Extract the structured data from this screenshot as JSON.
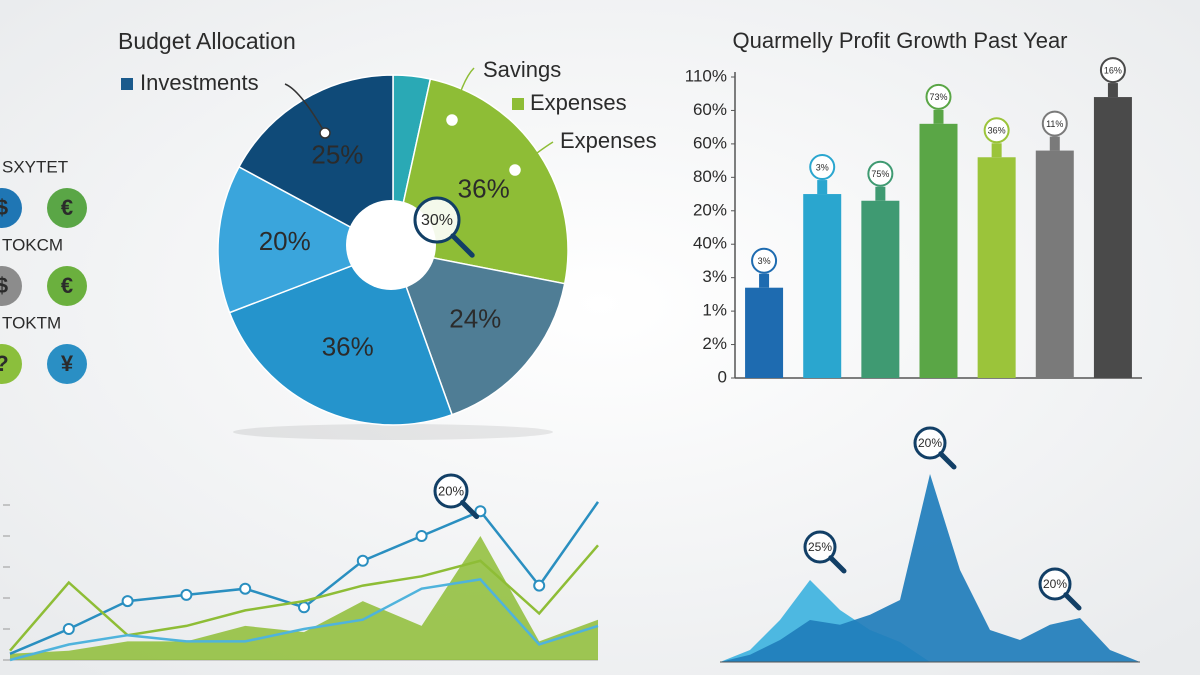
{
  "sidebar": {
    "groups": [
      {
        "label": "SXYTET",
        "icons": [
          {
            "symbol": "$",
            "color": "#1f76b4"
          },
          {
            "symbol": "€",
            "color": "#5aa646"
          }
        ]
      },
      {
        "label": "TOKCM",
        "icons": [
          {
            "symbol": "$",
            "color": "#8c8c8c"
          },
          {
            "symbol": "€",
            "color": "#6bb03e"
          }
        ]
      },
      {
        "label": "TOKTM",
        "icons": [
          {
            "symbol": "?",
            "color": "#8bbf3c"
          },
          {
            "symbol": "¥",
            "color": "#2a8fc4"
          }
        ]
      }
    ]
  },
  "chart_data": [
    {
      "type": "pie",
      "title": "Budget Allocation",
      "values": [
        5,
        36,
        24,
        36,
        20,
        25
      ],
      "value_labels": [
        null,
        "36%",
        "24%",
        "36%",
        "20%",
        "25%"
      ],
      "colors": [
        "#2aa9b5",
        "#8ebd36",
        "#4f7d95",
        "#2594cc",
        "#3aa5dc",
        "#0f4a78"
      ],
      "legend": [
        {
          "label": "Investments",
          "color": "#1a5a8c"
        },
        {
          "label": "Savings",
          "color": "#8ebd36"
        },
        {
          "label": "Expenses",
          "color": "#8ebd36"
        },
        {
          "label": "Expenses",
          "color": "#8ebd36"
        }
      ],
      "callout": "30%"
    },
    {
      "type": "bar",
      "title": "Quarmelly Profit Growth Past Year",
      "categories": [
        null,
        null,
        null,
        null,
        null,
        null,
        null
      ],
      "values": [
        2.7,
        5.5,
        5.3,
        7.6,
        6.6,
        6.8,
        8.4
      ],
      "colors": [
        "#1e6bb0",
        "#2aa6cf",
        "#3f9a72",
        "#5aa646",
        "#9bc43a",
        "#7a7a7a",
        "#4a4a4a"
      ],
      "callouts": [
        "3%",
        "3%",
        "75%",
        "73%",
        "36%",
        "11%",
        "16%"
      ],
      "ylim": [
        0,
        9
      ],
      "yticks": [
        0,
        {
          "value": 1,
          "label": "2%"
        },
        {
          "value": 2,
          "label": "1%"
        },
        {
          "value": 3,
          "label": "3%"
        },
        {
          "value": 4,
          "label": "40%"
        },
        {
          "value": 5,
          "label": "20%"
        },
        {
          "value": 6,
          "label": "80%"
        },
        {
          "value": 7,
          "label": "60%"
        },
        {
          "value": 8,
          "label": "60%"
        },
        {
          "value": 9,
          "label": "110%"
        }
      ]
    },
    {
      "type": "line",
      "categories": [
        null,
        null,
        null,
        null,
        null,
        null,
        null,
        null,
        null,
        null,
        null
      ],
      "series": [
        {
          "color": "#2a8fc0",
          "values": [
            0.2,
            1.0,
            1.9,
            2.1,
            2.3,
            1.7,
            3.2,
            4.0,
            4.8,
            2.4,
            5.1
          ]
        },
        {
          "color": "#8ebd36",
          "values": [
            0.3,
            2.5,
            0.8,
            1.1,
            1.6,
            1.9,
            2.4,
            2.7,
            3.2,
            1.5,
            3.7
          ]
        },
        {
          "color": "#4fb3dc",
          "values": [
            0,
            0.5,
            0.8,
            0.6,
            0.6,
            1.0,
            1.3,
            2.3,
            2.6,
            0.5,
            1.1
          ]
        }
      ],
      "area": {
        "color": "#8ebd36",
        "values": [
          0.2,
          0.3,
          0.6,
          0.6,
          1.1,
          0.9,
          1.9,
          1.1,
          4.0,
          0.6,
          1.3
        ]
      },
      "ylim": [
        0,
        5
      ],
      "yticks": [
        0,
        1,
        2,
        3,
        4,
        5
      ],
      "callout": "20%"
    },
    {
      "type": "area",
      "categories": [
        null,
        null,
        null,
        null,
        null,
        null,
        null,
        null,
        null,
        null,
        null,
        null,
        null,
        null,
        null
      ],
      "series": [
        {
          "color": "#3fb3df",
          "values": [
            0,
            0.3,
            1.05,
            2.05,
            1.3,
            0.8,
            0.5,
            0,
            0,
            0,
            0,
            0,
            0,
            0,
            0
          ]
        },
        {
          "color": "#1f7dbb",
          "values": [
            0,
            0.18,
            0.55,
            1.05,
            0.93,
            1.18,
            1.55,
            4.7,
            2.3,
            0.8,
            0.55,
            0.93,
            1.1,
            0.3,
            0
          ]
        }
      ],
      "ylim": [
        0,
        5
      ],
      "callouts": [
        "25%",
        "20%",
        "20%"
      ]
    }
  ]
}
